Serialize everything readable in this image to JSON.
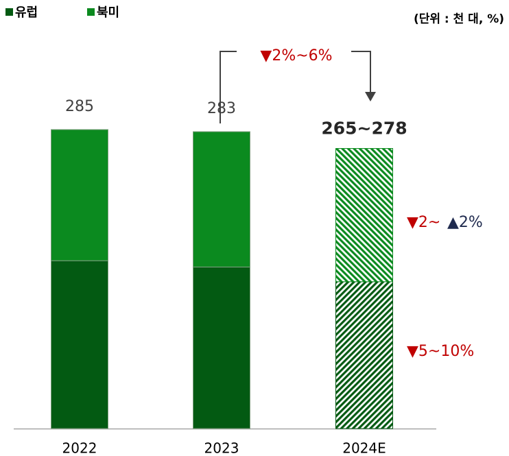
{
  "chart_data": {
    "type": "stacked_bar",
    "unit": "(단위 : 천 대, %)",
    "categories": [
      "2022",
      "2023",
      "2024E"
    ],
    "series": [
      {
        "name": "유럽",
        "color": "#035a12",
        "values": [
          160,
          154,
          140
        ]
      },
      {
        "name": "북미",
        "color": "#0b8a1f",
        "values": [
          125,
          129,
          127
        ]
      }
    ],
    "hatch": [
      false,
      false,
      true
    ],
    "total_labels": [
      "285",
      "283",
      "265~278"
    ],
    "annotations": [
      {
        "text": "▼2%~6%",
        "color": "#c00000"
      },
      {
        "text": "▼2~",
        "color": "#c00000"
      },
      {
        "text": "▲2%",
        "color": "#1f2a4e"
      },
      {
        "text": "▼5~10%",
        "color": "#c00000"
      }
    ],
    "legend": "top-left"
  }
}
